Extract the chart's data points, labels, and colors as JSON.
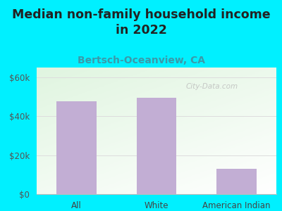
{
  "title": "Median non-family household income\nin 2022",
  "subtitle": "Bertsch-Oceanview, CA",
  "categories": [
    "All",
    "White",
    "American Indian"
  ],
  "values": [
    47500,
    49500,
    13000
  ],
  "bar_color": "#c2aed4",
  "title_fontsize": 12.5,
  "subtitle_fontsize": 10,
  "subtitle_color": "#3a9aaa",
  "title_color": "#222222",
  "tick_color": "#555555",
  "xtick_color": "#444444",
  "yticks": [
    0,
    20000,
    40000,
    60000
  ],
  "ytick_labels": [
    "$0",
    "$20k",
    "$40k",
    "$60k"
  ],
  "ylim": [
    0,
    65000
  ],
  "bg_outer": "#00f0ff",
  "bg_plot_left": "#e8f5e0",
  "bg_plot_right": "#f8fdf5",
  "watermark": "City-Data.com",
  "hline_color": "#dddddd",
  "hline_y": [
    20000,
    40000,
    60000
  ]
}
